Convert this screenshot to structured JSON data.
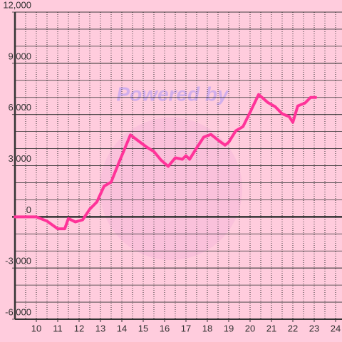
{
  "chart_data": {
    "type": "line",
    "watermark": "Powered by",
    "x": [
      9,
      10,
      10.5,
      11,
      11.33,
      11.5,
      11.83,
      12.17,
      12.5,
      12.83,
      13.17,
      13.5,
      13.83,
      14.17,
      14.4,
      14.83,
      15.17,
      15.5,
      15.83,
      16.17,
      16.5,
      16.83,
      17,
      17.17,
      17.5,
      17.83,
      18.17,
      18.5,
      18.83,
      19,
      19.33,
      19.67,
      20,
      20.4,
      20.83,
      21.17,
      21.5,
      21.83,
      22,
      22.23,
      22.57,
      22.83,
      23.07
    ],
    "series": [
      {
        "color": "#ff3399",
        "values": [
          0,
          0,
          -250,
          -700,
          -700,
          -100,
          -300,
          -170,
          450,
          870,
          1800,
          2040,
          3080,
          4100,
          4800,
          4400,
          4080,
          3830,
          3330,
          2960,
          3460,
          3375,
          3580,
          3375,
          4040,
          4670,
          4830,
          4500,
          4200,
          4375,
          5040,
          5290,
          6125,
          7170,
          6700,
          6460,
          6040,
          5875,
          5540,
          6500,
          6670,
          7000,
          7000
        ]
      }
    ],
    "xlim": [
      9,
      24.3
    ],
    "ylim": [
      -6000,
      12000
    ],
    "xticks": [
      10,
      11,
      12,
      13,
      14,
      15,
      16,
      17,
      18,
      19,
      20,
      21,
      22,
      23,
      24
    ],
    "xgrid": [
      9.5,
      10,
      10.5,
      11,
      11.5,
      12,
      12.5,
      13,
      13.5,
      14,
      14.5,
      15,
      15.5,
      16,
      16.5,
      17,
      17.5,
      18,
      18.5,
      19,
      19.5,
      20,
      20.5,
      21,
      21.5,
      22,
      22.5,
      23,
      23.5,
      24
    ],
    "yticks": [
      {
        "value": -6000,
        "label": "-6,000"
      },
      {
        "value": -3000,
        "label": "-3,000"
      },
      0,
      {
        "value": 3000,
        "label": "3,000"
      },
      {
        "value": 6000,
        "label": "6,000"
      },
      {
        "value": 9000,
        "label": "9,000"
      },
      {
        "value": 12000,
        "label": "12,000"
      }
    ],
    "ygrid": [
      -5000,
      -4000,
      -3000,
      -2000,
      -1000,
      1000,
      2000,
      3000,
      4000,
      5000,
      6000,
      7000,
      8000,
      9000,
      10000,
      11000,
      12000
    ],
    "grid": true
  }
}
